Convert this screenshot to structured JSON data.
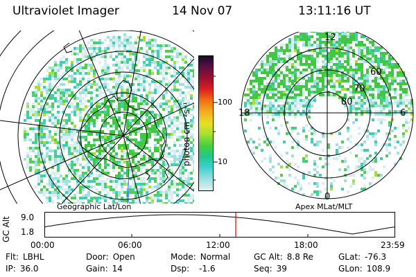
{
  "header": {
    "instrument": "Ultraviolet Imager",
    "date": "14 Nov 07",
    "time": "13:11:16 UT"
  },
  "colorbar": {
    "unit_label": "photon cm⁻²s⁻¹",
    "tick_labels": [
      "100",
      "10"
    ],
    "colors": [
      "#1a0a2a",
      "#5a1040",
      "#a01030",
      "#e02020",
      "#f07010",
      "#f5b020",
      "#e8e020",
      "#a8e030",
      "#40d040",
      "#20c890",
      "#40d0d0",
      "#a0e0e0",
      "#e0f0f0"
    ]
  },
  "geographic_panel": {
    "label": "Geographic Lat/Lon"
  },
  "polar_panel": {
    "label": "Apex MLat/MLT",
    "mlt_labels": {
      "top": "12",
      "left": "18",
      "right": "6",
      "bottom": "0"
    },
    "lat_labels": [
      "60",
      "70",
      "80"
    ]
  },
  "orbit_plot": {
    "ylabel": "GC Alt",
    "y_ticks": [
      "9.0",
      "1.8"
    ],
    "x_ticks": [
      "00:00",
      "06:00",
      "12:00",
      "18:00",
      "23:59"
    ],
    "current_time_marker_color": "#e00000"
  },
  "info": {
    "flt_label": "Flt:",
    "flt_value": "LBHL",
    "ip_label": "IP:",
    "ip_value": "36.0",
    "door_label": "Door:",
    "door_value": "Open",
    "gain_label": "Gain:",
    "gain_value": "14",
    "mode_label": "Mode:",
    "mode_value": "Normal",
    "dsp_label": "Dsp:",
    "dsp_value": "-1.6",
    "gcalt_label": "GC Alt:",
    "gcalt_value": "8.8 Re",
    "seq_label": "Seq:",
    "seq_value": "39",
    "glat_label": "GLat:",
    "glat_value": "-76.3",
    "glon_label": "GLon:",
    "glon_value": "108.9"
  }
}
